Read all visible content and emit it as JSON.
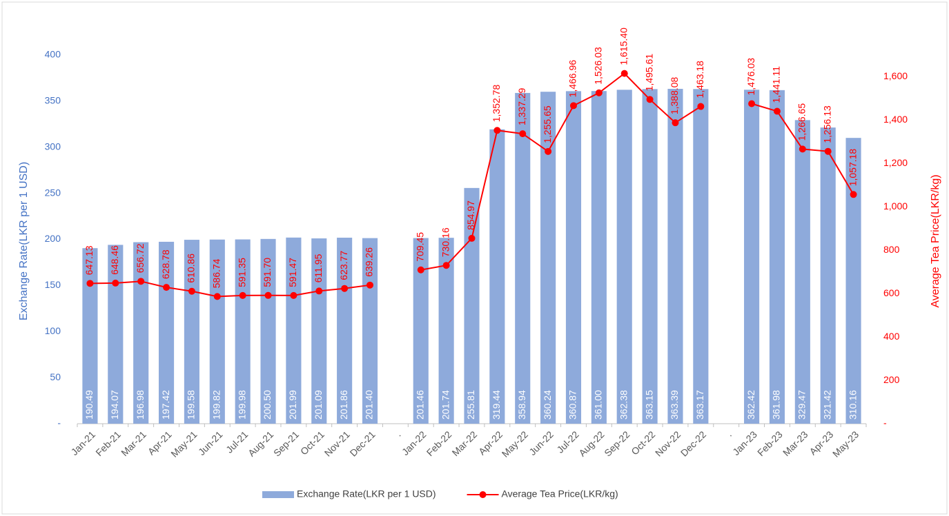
{
  "chart_data": {
    "type": "bar-line",
    "categories": [
      "Jan-21",
      "Feb-21",
      "Mar-21",
      "Apr-21",
      "May-21",
      "Jun-21",
      "Jul-21",
      "Aug-21",
      "Sep-21",
      "Oct-21",
      "Nov-21",
      "Dec-21",
      ".",
      "Jan-22",
      "Feb-22",
      "Mar-22",
      "Apr-22",
      "May-22",
      "Jun-22",
      "Jul-22",
      "Aug-22",
      "Sep-22",
      "Oct-22",
      "Nov-22",
      "Dec-22",
      ".",
      "Jan-23",
      "Feb-23",
      "Mar-23",
      "Apr-23",
      "May-23"
    ],
    "series": [
      {
        "name": "Exchange Rate(LKR per 1 USD)",
        "type": "bar",
        "color": "#8eaadb",
        "values": [
          190.49,
          194.07,
          196.98,
          197.42,
          199.58,
          199.82,
          199.98,
          200.5,
          201.99,
          201.09,
          201.86,
          201.4,
          null,
          201.46,
          201.74,
          255.81,
          319.44,
          358.94,
          360.24,
          360.87,
          361,
          362.38,
          363.15,
          363.39,
          363.17,
          null,
          362.42,
          361.98,
          329.47,
          321.42,
          310.16
        ],
        "value_labels": [
          "190.49",
          "194.07",
          "196.98",
          "197.42",
          "199.58",
          "199.82",
          "199.98",
          "200.50",
          "201.99",
          "201.09",
          "201.86",
          "201.40",
          null,
          "201.46",
          "201.74",
          "255.81",
          "319.44",
          "358.94",
          "360.24",
          "360.87",
          "361.00",
          "362.38",
          "363.15",
          "363.39",
          "363.17",
          null,
          "362.42",
          "361.98",
          "329.47",
          "321.42",
          "310.16"
        ]
      },
      {
        "name": "Average Tea Price(LKR/kg)",
        "type": "line",
        "axis": "y2",
        "color": "#ff0000",
        "values": [
          647.13,
          648.46,
          656.72,
          628.78,
          610.86,
          586.74,
          591.35,
          591.7,
          591.47,
          611.95,
          623.77,
          639.26,
          null,
          709.45,
          730.16,
          854.97,
          1352.78,
          1337.29,
          1255.65,
          1466.96,
          1526.03,
          1615.4,
          1495.61,
          1388.08,
          1463.18,
          null,
          1476.03,
          1441.11,
          1266.65,
          1256.13,
          1057.18
        ],
        "value_labels": [
          "647.13",
          "648.46",
          "656.72",
          "628.78",
          "610.86",
          "586.74",
          "591.35",
          "591.70",
          "591.47",
          "611.95",
          "623.77",
          "639.26",
          null,
          "709.45",
          "730.16",
          "854.97",
          "1,352.78",
          "1,337.29",
          "1,255.65",
          "1,466.96",
          "1,526.03",
          "1,615.40",
          "1,495.61",
          "1,388.08",
          "1,463.18",
          null,
          "1,476.03",
          "1,441.11",
          "1,266.65",
          "1,256.13",
          "1,057.18"
        ]
      }
    ],
    "ylabel": "Exchange Rate(LKR per 1 USD)",
    "y2label": "Average Tea Price(LKR/kg)",
    "ylim": [
      0,
      400
    ],
    "yticks": [
      {
        "value": 0,
        "label": "-"
      },
      50,
      100,
      150,
      200,
      250,
      300,
      350,
      400
    ],
    "y2lim": [
      0,
      1700
    ],
    "y2ticks": [
      {
        "value": 0,
        "label": "-"
      },
      200,
      400,
      600,
      800,
      {
        "value": 1000,
        "label": "1,000"
      },
      {
        "value": 1200,
        "label": "1,200"
      },
      {
        "value": 1400,
        "label": "1,400"
      },
      {
        "value": 1600,
        "label": "1,600"
      }
    ],
    "legend": "bottom"
  }
}
